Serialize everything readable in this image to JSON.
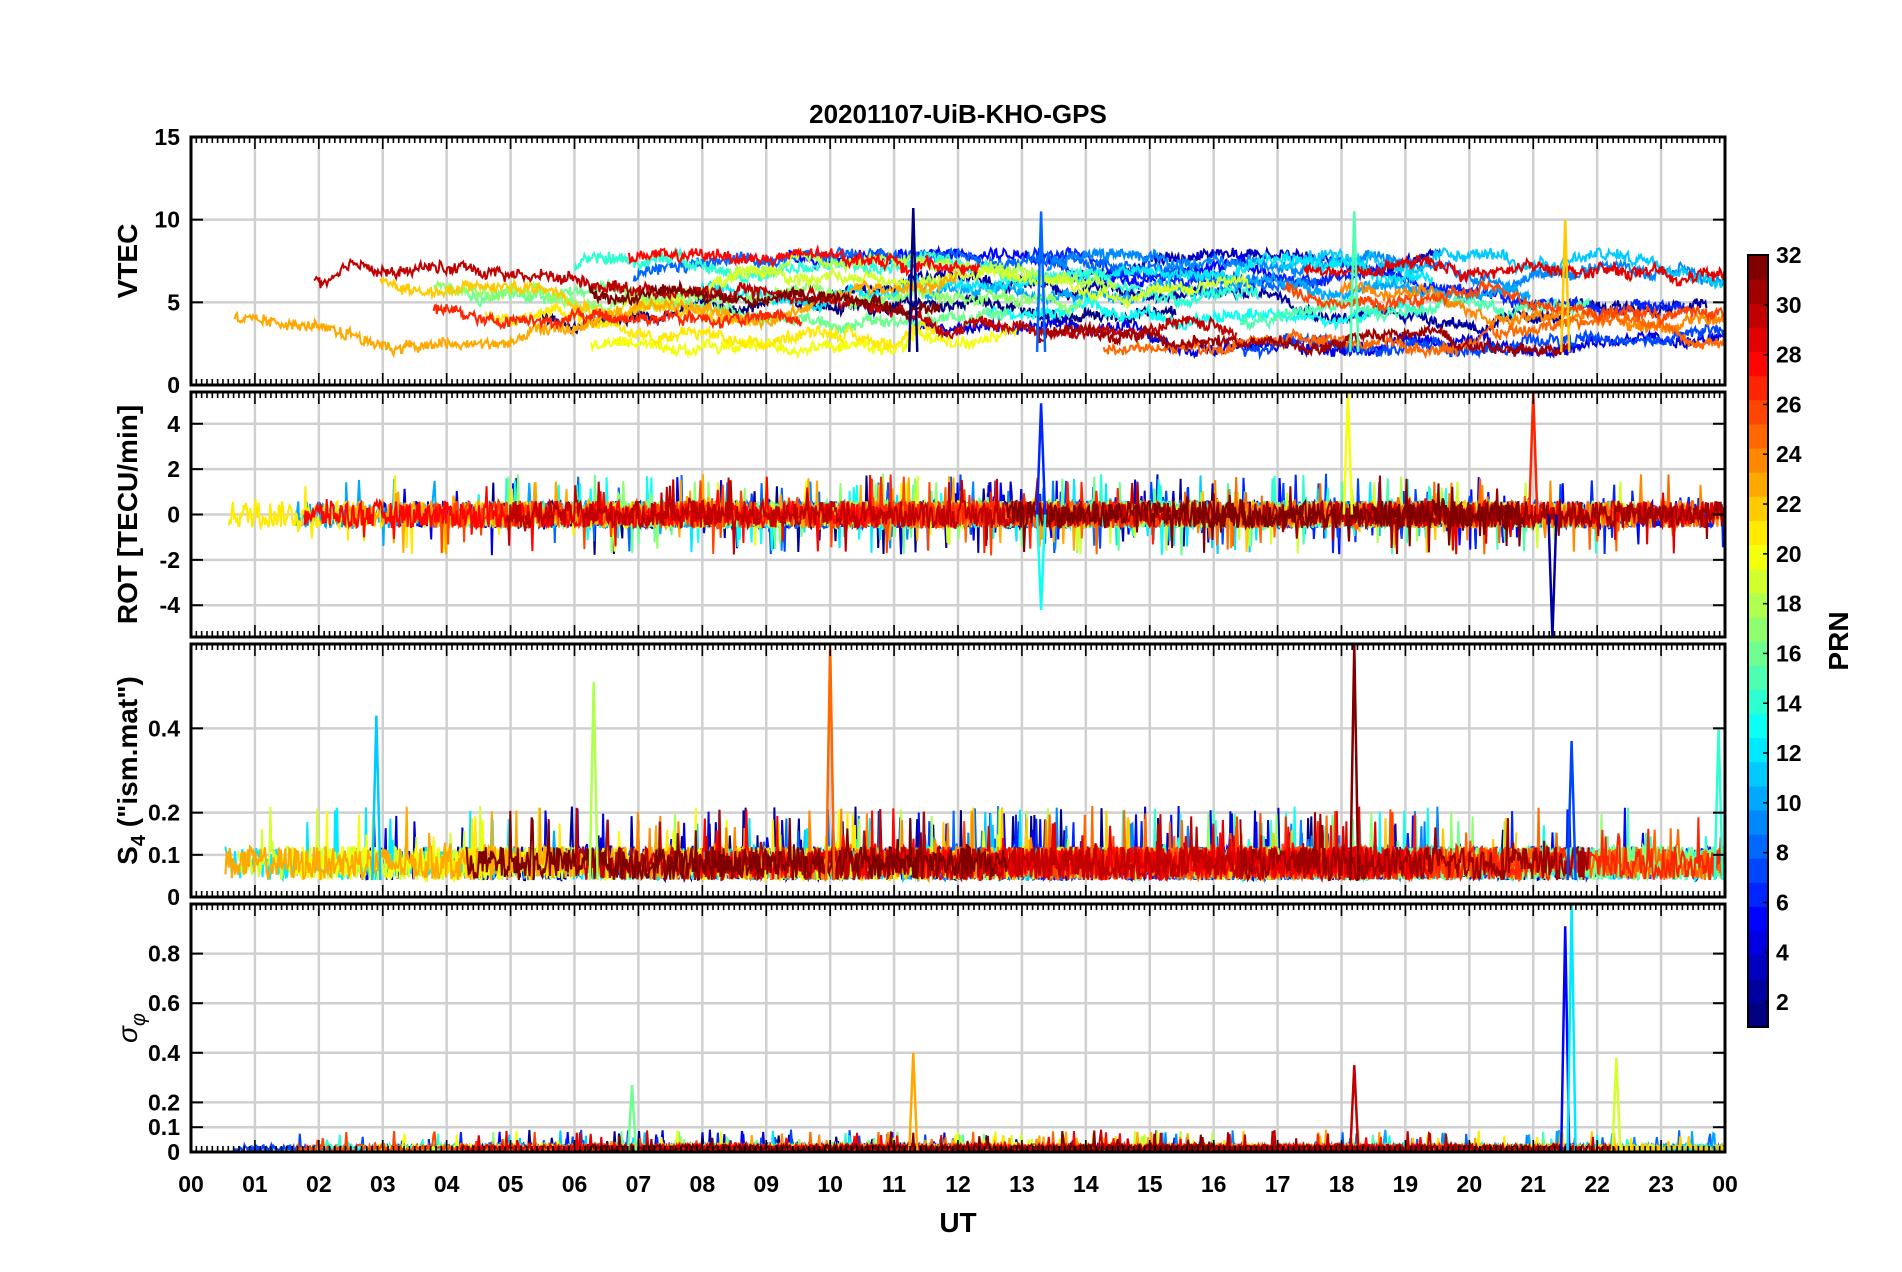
{
  "chart_data": {
    "type": "line",
    "title": "20201107-UiB-KHO-GPS",
    "xlabel": "UT",
    "x_range": [
      0,
      24
    ],
    "x_ticks": [
      "00",
      "01",
      "02",
      "03",
      "04",
      "05",
      "06",
      "07",
      "08",
      "09",
      "10",
      "11",
      "12",
      "13",
      "14",
      "15",
      "16",
      "17",
      "18",
      "19",
      "20",
      "21",
      "22",
      "23",
      "00"
    ],
    "grid": true,
    "legend": "colorbar-right",
    "colorbar": {
      "label": "PRN",
      "range": [
        1,
        32
      ],
      "ticks": [
        "2",
        "4",
        "6",
        "8",
        "10",
        "12",
        "14",
        "16",
        "18",
        "20",
        "22",
        "24",
        "26",
        "28",
        "30",
        "32"
      ],
      "colormap": "jet"
    },
    "series_color_by": "PRN",
    "panels": [
      {
        "ylabel": "VTEC",
        "ylim": [
          0,
          15
        ],
        "yticks": [
          "0",
          "5",
          "10",
          "15"
        ],
        "typical_range": [
          2,
          8
        ],
        "peaks": [
          {
            "x": 11.3,
            "y": 10.7
          },
          {
            "x": 13.3,
            "y": 10.5
          },
          {
            "x": 18.2,
            "y": 10.5
          },
          {
            "x": 21.5,
            "y": 10.0
          }
        ]
      },
      {
        "ylabel": "ROT [TECU/min]",
        "ylim": [
          -5.4,
          5.4
        ],
        "yticks": [
          "-4",
          "-2",
          "0",
          "2",
          "4"
        ],
        "typical_range": [
          -1,
          1
        ],
        "peaks": [
          {
            "x": 13.3,
            "y": 4.9
          },
          {
            "x": 13.3,
            "y": -4.2
          },
          {
            "x": 18.1,
            "y": 5.4
          },
          {
            "x": 21.0,
            "y": 5.4
          },
          {
            "x": 21.3,
            "y": -5.4
          }
        ]
      },
      {
        "ylabel_main": "S",
        "ylabel_sub": "4",
        "ylabel_rest": " (\"ism.mat\")",
        "ylim": [
          0,
          0.6
        ],
        "yticks": [
          "0",
          "0.1",
          "0.2",
          "0.4"
        ],
        "typical_range": [
          0.04,
          0.12
        ],
        "peaks": [
          {
            "x": 2.9,
            "y": 0.43
          },
          {
            "x": 6.3,
            "y": 0.51
          },
          {
            "x": 10.0,
            "y": 0.6
          },
          {
            "x": 18.2,
            "y": 0.6
          },
          {
            "x": 21.6,
            "y": 0.37
          },
          {
            "x": 23.9,
            "y": 0.4
          }
        ]
      },
      {
        "ylabel_main": "σ",
        "ylabel_sub": "φ",
        "ylim": [
          0,
          1.0
        ],
        "yticks": [
          "0",
          "0.1",
          "0.2",
          "0.4",
          "0.6",
          "0.8"
        ],
        "typical_range": [
          0.0,
          0.03
        ],
        "peaks": [
          {
            "x": 6.9,
            "y": 0.27
          },
          {
            "x": 11.3,
            "y": 0.4
          },
          {
            "x": 18.2,
            "y": 0.35
          },
          {
            "x": 21.5,
            "y": 0.91
          },
          {
            "x": 21.6,
            "y": 1.0
          },
          {
            "x": 22.3,
            "y": 0.38
          }
        ]
      }
    ]
  }
}
